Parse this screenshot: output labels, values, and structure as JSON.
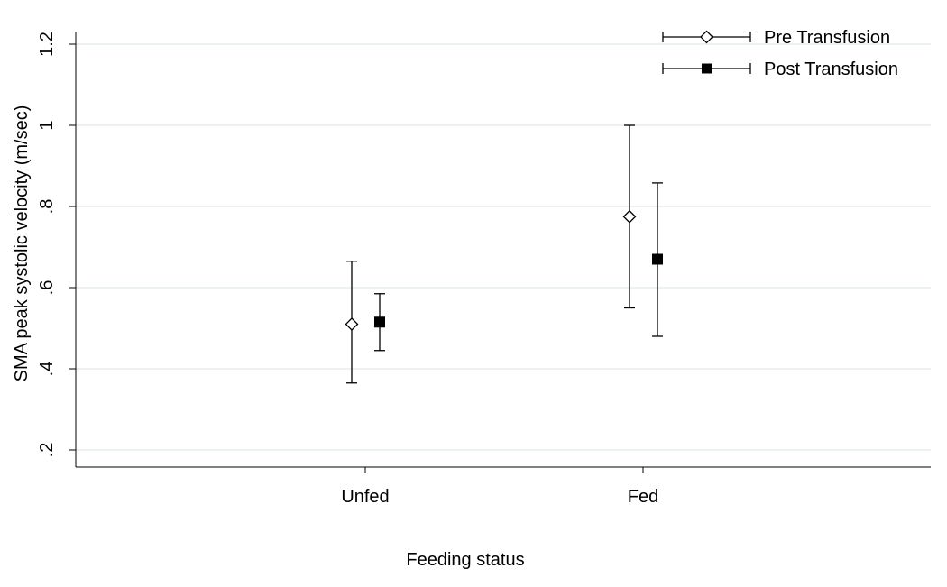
{
  "chart_data": {
    "type": "scatter",
    "subtype": "point-with-error-bars",
    "title": "",
    "xlabel": "Feeding status",
    "ylabel": "SMA peak systolic velocity (m/sec)",
    "categories": [
      "Unfed",
      "Fed"
    ],
    "ylim": [
      0.16,
      1.24
    ],
    "yticks": [
      0.2,
      0.4,
      0.6,
      0.8,
      1.0,
      1.2
    ],
    "ytick_labels": [
      ".2",
      ".4",
      ".6",
      ".8",
      "1",
      "1.2"
    ],
    "grid": true,
    "legend_position": "top-right",
    "series": [
      {
        "name": "Pre Transfusion",
        "marker": "hollow-diamond",
        "values": [
          0.51,
          0.775
        ],
        "lower": [
          0.365,
          0.55
        ],
        "upper": [
          0.665,
          1.0
        ]
      },
      {
        "name": "Post Transfusion",
        "marker": "filled-square",
        "values": [
          0.515,
          0.67
        ],
        "lower": [
          0.445,
          0.48
        ],
        "upper": [
          0.585,
          0.858
        ]
      }
    ]
  },
  "colors": {
    "background": "#ffffff",
    "gridline": "#e6eef0",
    "axis": "#000000",
    "marker": "#000000"
  }
}
